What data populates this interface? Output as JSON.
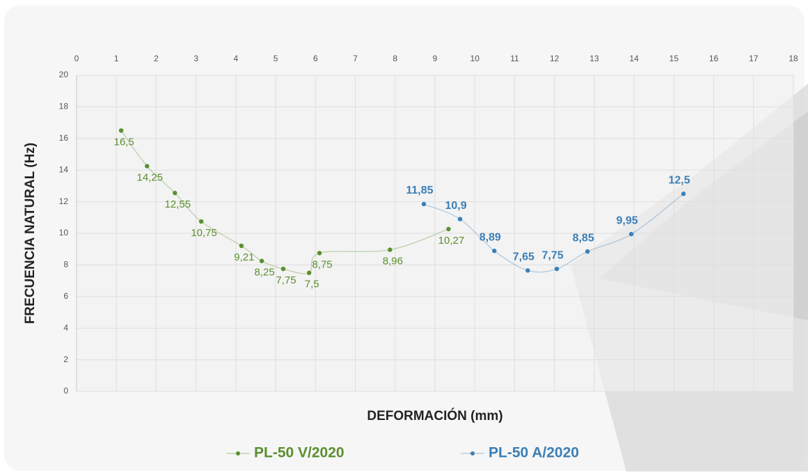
{
  "chart_data": {
    "type": "scatter",
    "x_label": "DEFORMACIÓN (mm)",
    "y_label": "FRECUENCIA NATURAL (Hz)",
    "xlim": [
      0,
      18
    ],
    "ylim": [
      0,
      20
    ],
    "xticks": [
      0,
      1,
      2,
      3,
      4,
      5,
      6,
      7,
      8,
      9,
      10,
      11,
      12,
      13,
      14,
      15,
      16,
      17,
      18
    ],
    "yticks": [
      0,
      2,
      4,
      6,
      8,
      10,
      12,
      14,
      16,
      18,
      20
    ],
    "grid": true,
    "legend": "bottom",
    "series": [
      {
        "name": "PL-50 V/2020",
        "color": "#5b8f2e",
        "x": [
          1.12,
          1.77,
          2.47,
          3.13,
          4.14,
          4.65,
          5.19,
          5.84,
          6.1,
          7.87,
          9.34
        ],
        "values": [
          16.5,
          14.25,
          12.55,
          10.75,
          9.21,
          8.25,
          7.75,
          7.5,
          8.75,
          8.96,
          10.27
        ],
        "value_labels": [
          "16,5",
          "14,25",
          "12,55",
          "10,75",
          "9,21",
          "8,25",
          "7,75",
          "7,5",
          "8,75",
          "8,96",
          "10,27"
        ]
      },
      {
        "name": "PL-50 A/2020",
        "color": "#3b7fb6",
        "x": [
          8.72,
          9.63,
          10.49,
          11.33,
          12.06,
          12.83,
          13.93,
          15.24
        ],
        "values": [
          11.85,
          10.9,
          8.89,
          7.65,
          7.75,
          8.85,
          9.95,
          12.5
        ],
        "value_labels": [
          "11,85",
          "10,9",
          "8,89",
          "7,65",
          "7,75",
          "8,85",
          "9,95",
          "12,5"
        ]
      }
    ]
  }
}
